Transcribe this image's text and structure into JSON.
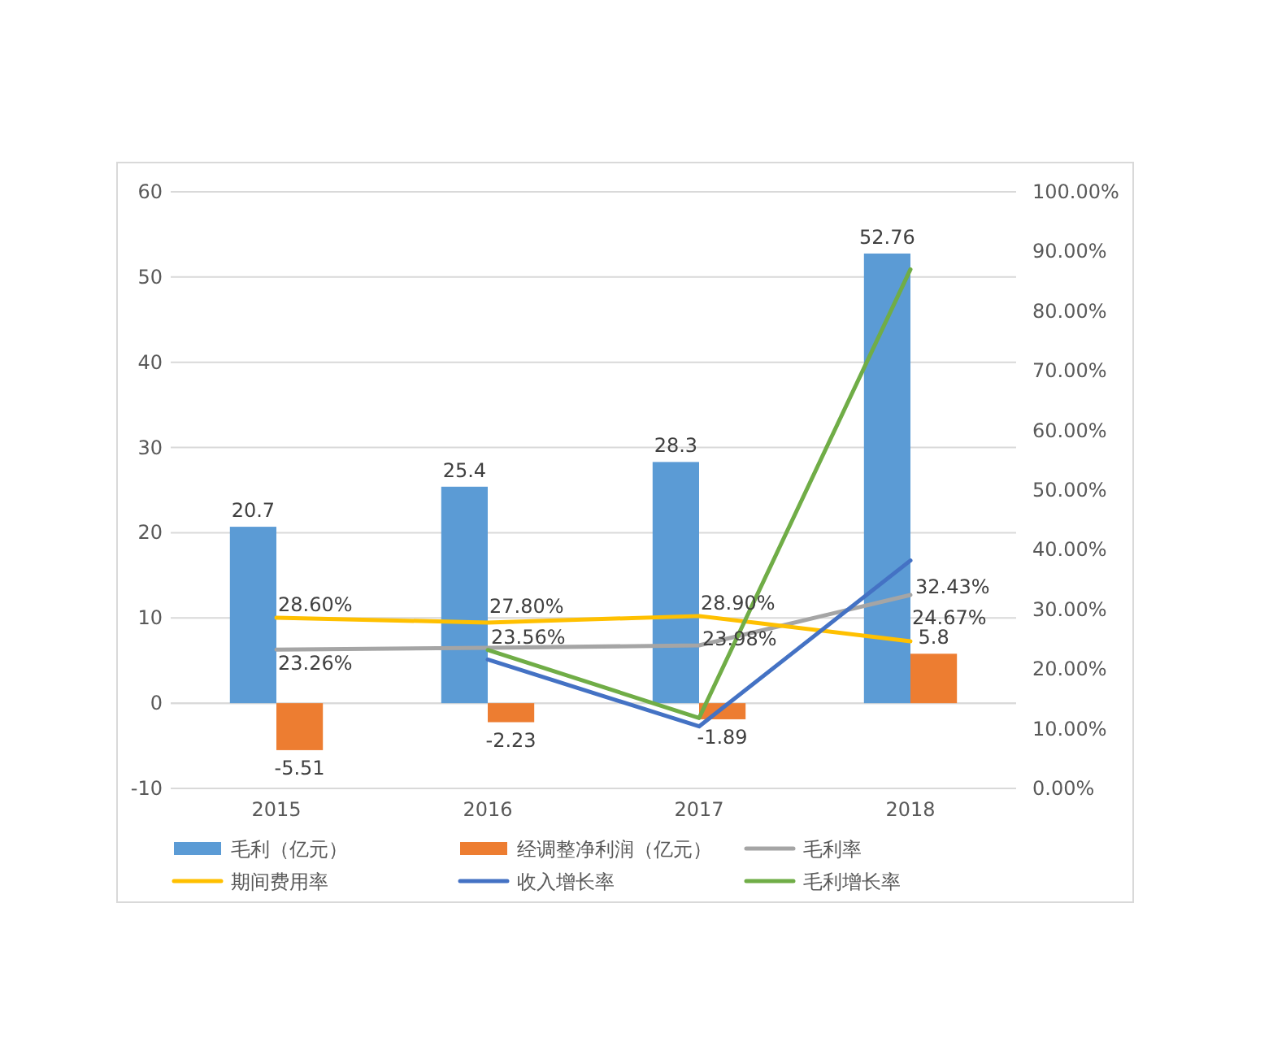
{
  "chart_data": {
    "type": "bar",
    "categories": [
      "2015",
      "2016",
      "2017",
      "2018"
    ],
    "series": [
      {
        "name": "毛利（亿元）",
        "color": "#5b9bd5",
        "values": [
          20.7,
          25.4,
          28.3,
          52.76
        ],
        "value_labels": [
          "20.7",
          "25.4",
          "28.3",
          "52.76"
        ]
      },
      {
        "name": "经调整净利润（亿元）",
        "color": "#ed7d31",
        "values": [
          -5.51,
          -2.23,
          -1.89,
          5.8
        ],
        "value_labels": [
          "-5.51",
          "-2.23",
          "-1.89",
          "5.8"
        ]
      },
      {
        "name": "毛利率",
        "type": "line",
        "axis": "y2",
        "color": "#a5a5a5",
        "values": [
          23.26,
          23.56,
          23.98,
          32.43
        ],
        "value_labels": [
          "23.26%",
          "23.56%",
          "23.98%",
          "32.43%"
        ]
      },
      {
        "name": "期间费用率",
        "type": "line",
        "axis": "y2",
        "color": "#ffc000",
        "values": [
          28.6,
          27.8,
          28.9,
          24.67
        ],
        "value_labels": [
          "28.60%",
          "27.80%",
          "28.90%",
          "24.67%"
        ]
      },
      {
        "name": "收入增长率",
        "type": "line",
        "axis": "y2",
        "color": "#4472c4",
        "values": [
          null,
          21.6,
          10.4,
          38.2
        ]
      },
      {
        "name": "毛利增长率",
        "type": "line",
        "axis": "y2",
        "color": "#70ad47",
        "values": [
          null,
          23.2,
          11.8,
          87.0
        ]
      }
    ],
    "ylim": [
      -10,
      60
    ],
    "yticks": [
      -10,
      0,
      10,
      20,
      30,
      40,
      50,
      60
    ],
    "y2lim": [
      0,
      100
    ],
    "y2ticks": [
      {
        "value": 0,
        "label": "0.00%"
      },
      {
        "value": 10,
        "label": "10.00%"
      },
      {
        "value": 20,
        "label": "20.00%"
      },
      {
        "value": 30,
        "label": "30.00%"
      },
      {
        "value": 40,
        "label": "40.00%"
      },
      {
        "value": 50,
        "label": "50.00%"
      },
      {
        "value": 60,
        "label": "60.00%"
      },
      {
        "value": 70,
        "label": "70.00%"
      },
      {
        "value": 80,
        "label": "80.00%"
      },
      {
        "value": 90,
        "label": "90.00%"
      },
      {
        "value": 100,
        "label": "100.00%"
      }
    ],
    "grid": "y",
    "legend": "bottom"
  }
}
